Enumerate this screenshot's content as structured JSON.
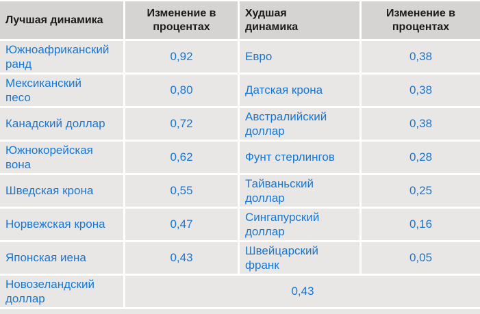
{
  "chart_data": {
    "type": "table",
    "columns": [
      "Лучшая динамика",
      "Изменение в процентах",
      "Худшая динамика",
      "Изменение в процентах"
    ],
    "rows": [
      [
        "Южноафриканский ранд",
        "0,92",
        "Евро",
        "0,38"
      ],
      [
        "Мексиканский песо",
        "0,80",
        "Датская крона",
        "0,38"
      ],
      [
        "Канадский доллар",
        "0,72",
        "Австралийский доллар",
        "0,38"
      ],
      [
        "Южнокорейская вона",
        "0,62",
        "Фунт стерлингов",
        "0,28"
      ],
      [
        "Шведская крона",
        "0,55",
        "Тайваньский доллар",
        "0,25"
      ],
      [
        "Норвежская крона",
        "0,47",
        "Сингапурский доллар",
        "0,16"
      ],
      [
        "Японская иена",
        "0,43",
        "Швейцарский франк",
        "0,05"
      ]
    ],
    "footer": {
      "label": "Новозеландский доллар",
      "value": "0,43"
    },
    "layout": {
      "grid": "off",
      "legend": "none"
    }
  },
  "colors": {
    "header_bg": "#d5d4d3",
    "row_bg": "#e8e7e6",
    "separator": "#ffffff",
    "header_text": "#1a1a1a",
    "value_text": "#1777d2"
  }
}
